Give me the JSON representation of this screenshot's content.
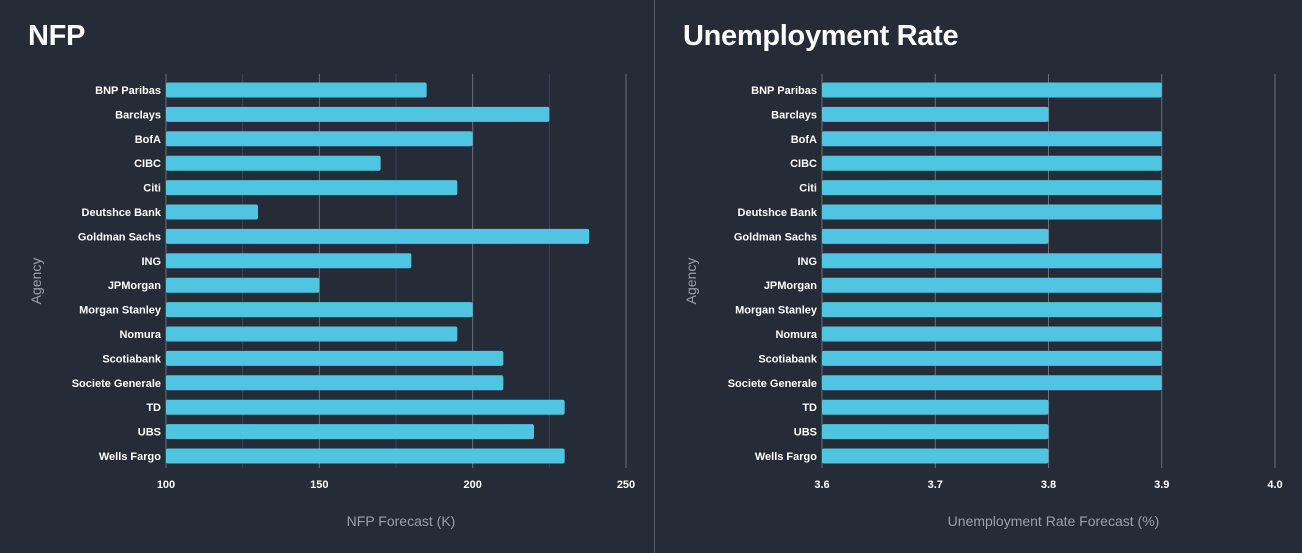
{
  "colors": {
    "background": "#252b37",
    "bar": "#50c5e2",
    "grid_major": "#6b7079",
    "grid_minor": "#3d4350",
    "divider": "#5a606b"
  },
  "chart_data": [
    {
      "type": "bar",
      "orientation": "horizontal",
      "title": "NFP",
      "xlabel": "NFP Forecast (K)",
      "ylabel": "Agency",
      "xlim": [
        100,
        250
      ],
      "xticks": [
        100,
        150,
        200,
        250
      ],
      "minor_grid": [
        125,
        175,
        225
      ],
      "grid": true,
      "categories": [
        "BNP Paribas",
        "Barclays",
        "BofA",
        "CIBC",
        "Citi",
        "Deutshce Bank",
        "Goldman Sachs",
        "ING",
        "JPMorgan",
        "Morgan Stanley",
        "Nomura",
        "Scotiabank",
        "Societe Generale",
        "TD",
        "UBS",
        "Wells Fargo"
      ],
      "values": [
        185,
        225,
        200,
        170,
        195,
        130,
        238,
        180,
        150,
        200,
        195,
        210,
        210,
        230,
        220,
        230
      ]
    },
    {
      "type": "bar",
      "orientation": "horizontal",
      "title": "Unemployment Rate",
      "xlabel": "Unemployment Rate Forecast (%)",
      "ylabel": "Agency",
      "xlim": [
        3.6,
        4.0
      ],
      "xticks": [
        3.6,
        3.7,
        3.8,
        3.9,
        4.0
      ],
      "minor_grid": [],
      "grid": true,
      "categories": [
        "BNP Paribas",
        "Barclays",
        "BofA",
        "CIBC",
        "Citi",
        "Deutshce Bank",
        "Goldman Sachs",
        "ING",
        "JPMorgan",
        "Morgan Stanley",
        "Nomura",
        "Scotiabank",
        "Societe Generale",
        "TD",
        "UBS",
        "Wells Fargo"
      ],
      "values": [
        3.9,
        3.8,
        3.9,
        3.9,
        3.9,
        3.9,
        3.8,
        3.9,
        3.9,
        3.9,
        3.9,
        3.9,
        3.9,
        3.8,
        3.8,
        3.8
      ]
    }
  ]
}
